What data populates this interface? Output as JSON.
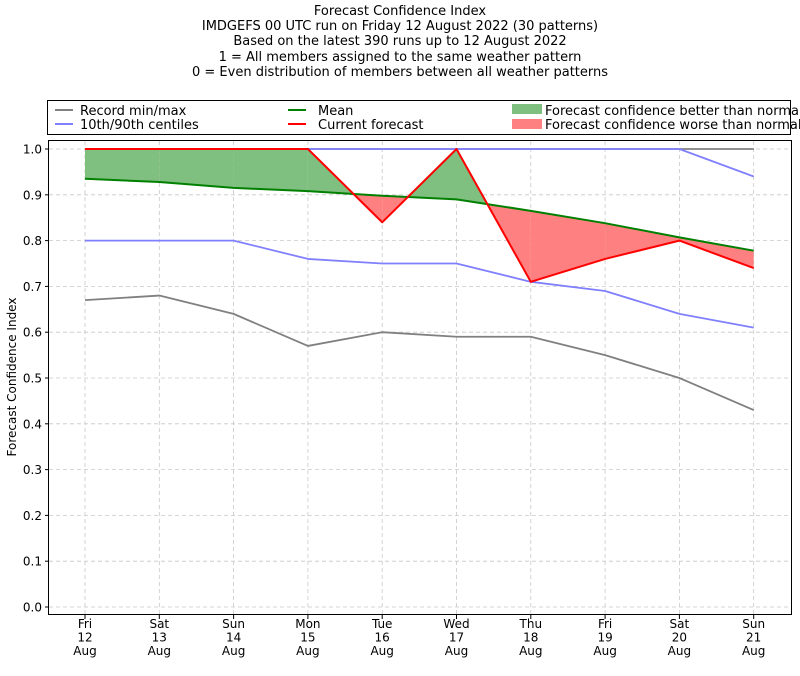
{
  "chart_data": {
    "type": "line",
    "title": "Forecast Confidence Index",
    "subtitle_lines": [
      "IMDGEFS 00 UTC run on Friday 12 August 2022 (30 patterns)",
      "Based on the latest 390 runs up to 12 August 2022",
      "1 = All members assigned to the same weather pattern",
      "0 = Even distribution of members between all weather patterns"
    ],
    "xlabel": "",
    "ylabel": "Forecast Confidence Index",
    "categories": [
      [
        "Fri",
        "12",
        "Aug"
      ],
      [
        "Sat",
        "13",
        "Aug"
      ],
      [
        "Sun",
        "14",
        "Aug"
      ],
      [
        "Mon",
        "15",
        "Aug"
      ],
      [
        "Tue",
        "16",
        "Aug"
      ],
      [
        "Wed",
        "17",
        "Aug"
      ],
      [
        "Thu",
        "18",
        "Aug"
      ],
      [
        "Fri",
        "19",
        "Aug"
      ],
      [
        "Sat",
        "20",
        "Aug"
      ],
      [
        "Sun",
        "21",
        "Aug"
      ]
    ],
    "ylim": [
      0,
      1
    ],
    "yticks": [
      "0.0",
      "0.1",
      "0.2",
      "0.3",
      "0.4",
      "0.5",
      "0.6",
      "0.7",
      "0.8",
      "0.9",
      "1.0"
    ],
    "grid": true,
    "legend_position": "top, above plot area",
    "legend": {
      "record": "Record min/max",
      "centiles": "10th/90th centiles",
      "mean": "Mean",
      "current": "Current forecast",
      "better": "Forecast confidence better than normal",
      "worse": "Forecast confidence worse than normal"
    },
    "series": [
      {
        "key": "record_max",
        "name": "Record min/max",
        "color": "#808080",
        "values": [
          1.0,
          1.0,
          1.0,
          1.0,
          1.0,
          1.0,
          1.0,
          1.0,
          1.0,
          1.0
        ]
      },
      {
        "key": "record_min",
        "color": "#808080",
        "values": [
          0.67,
          0.68,
          0.64,
          0.57,
          0.6,
          0.59,
          0.59,
          0.55,
          0.5,
          0.43
        ]
      },
      {
        "key": "p90",
        "name": "10th/90th centiles",
        "color": "#8080ff",
        "values": [
          1.0,
          1.0,
          1.0,
          1.0,
          1.0,
          1.0,
          1.0,
          1.0,
          1.0,
          0.94
        ]
      },
      {
        "key": "p10",
        "color": "#8080ff",
        "values": [
          0.8,
          0.8,
          0.8,
          0.76,
          0.75,
          0.75,
          0.71,
          0.69,
          0.64,
          0.61
        ]
      },
      {
        "key": "mean",
        "name": "Mean",
        "color": "#008000",
        "values": [
          0.935,
          0.928,
          0.915,
          0.908,
          0.898,
          0.89,
          0.865,
          0.838,
          0.807,
          0.778
        ]
      },
      {
        "key": "current",
        "name": "Current forecast",
        "color": "#ff0000",
        "values": [
          1.0,
          1.0,
          1.0,
          1.0,
          0.84,
          1.0,
          0.71,
          0.76,
          0.8,
          0.74
        ]
      }
    ],
    "fill_colors": {
      "better": "#7fbf7f",
      "worse": "#ff8080"
    }
  }
}
